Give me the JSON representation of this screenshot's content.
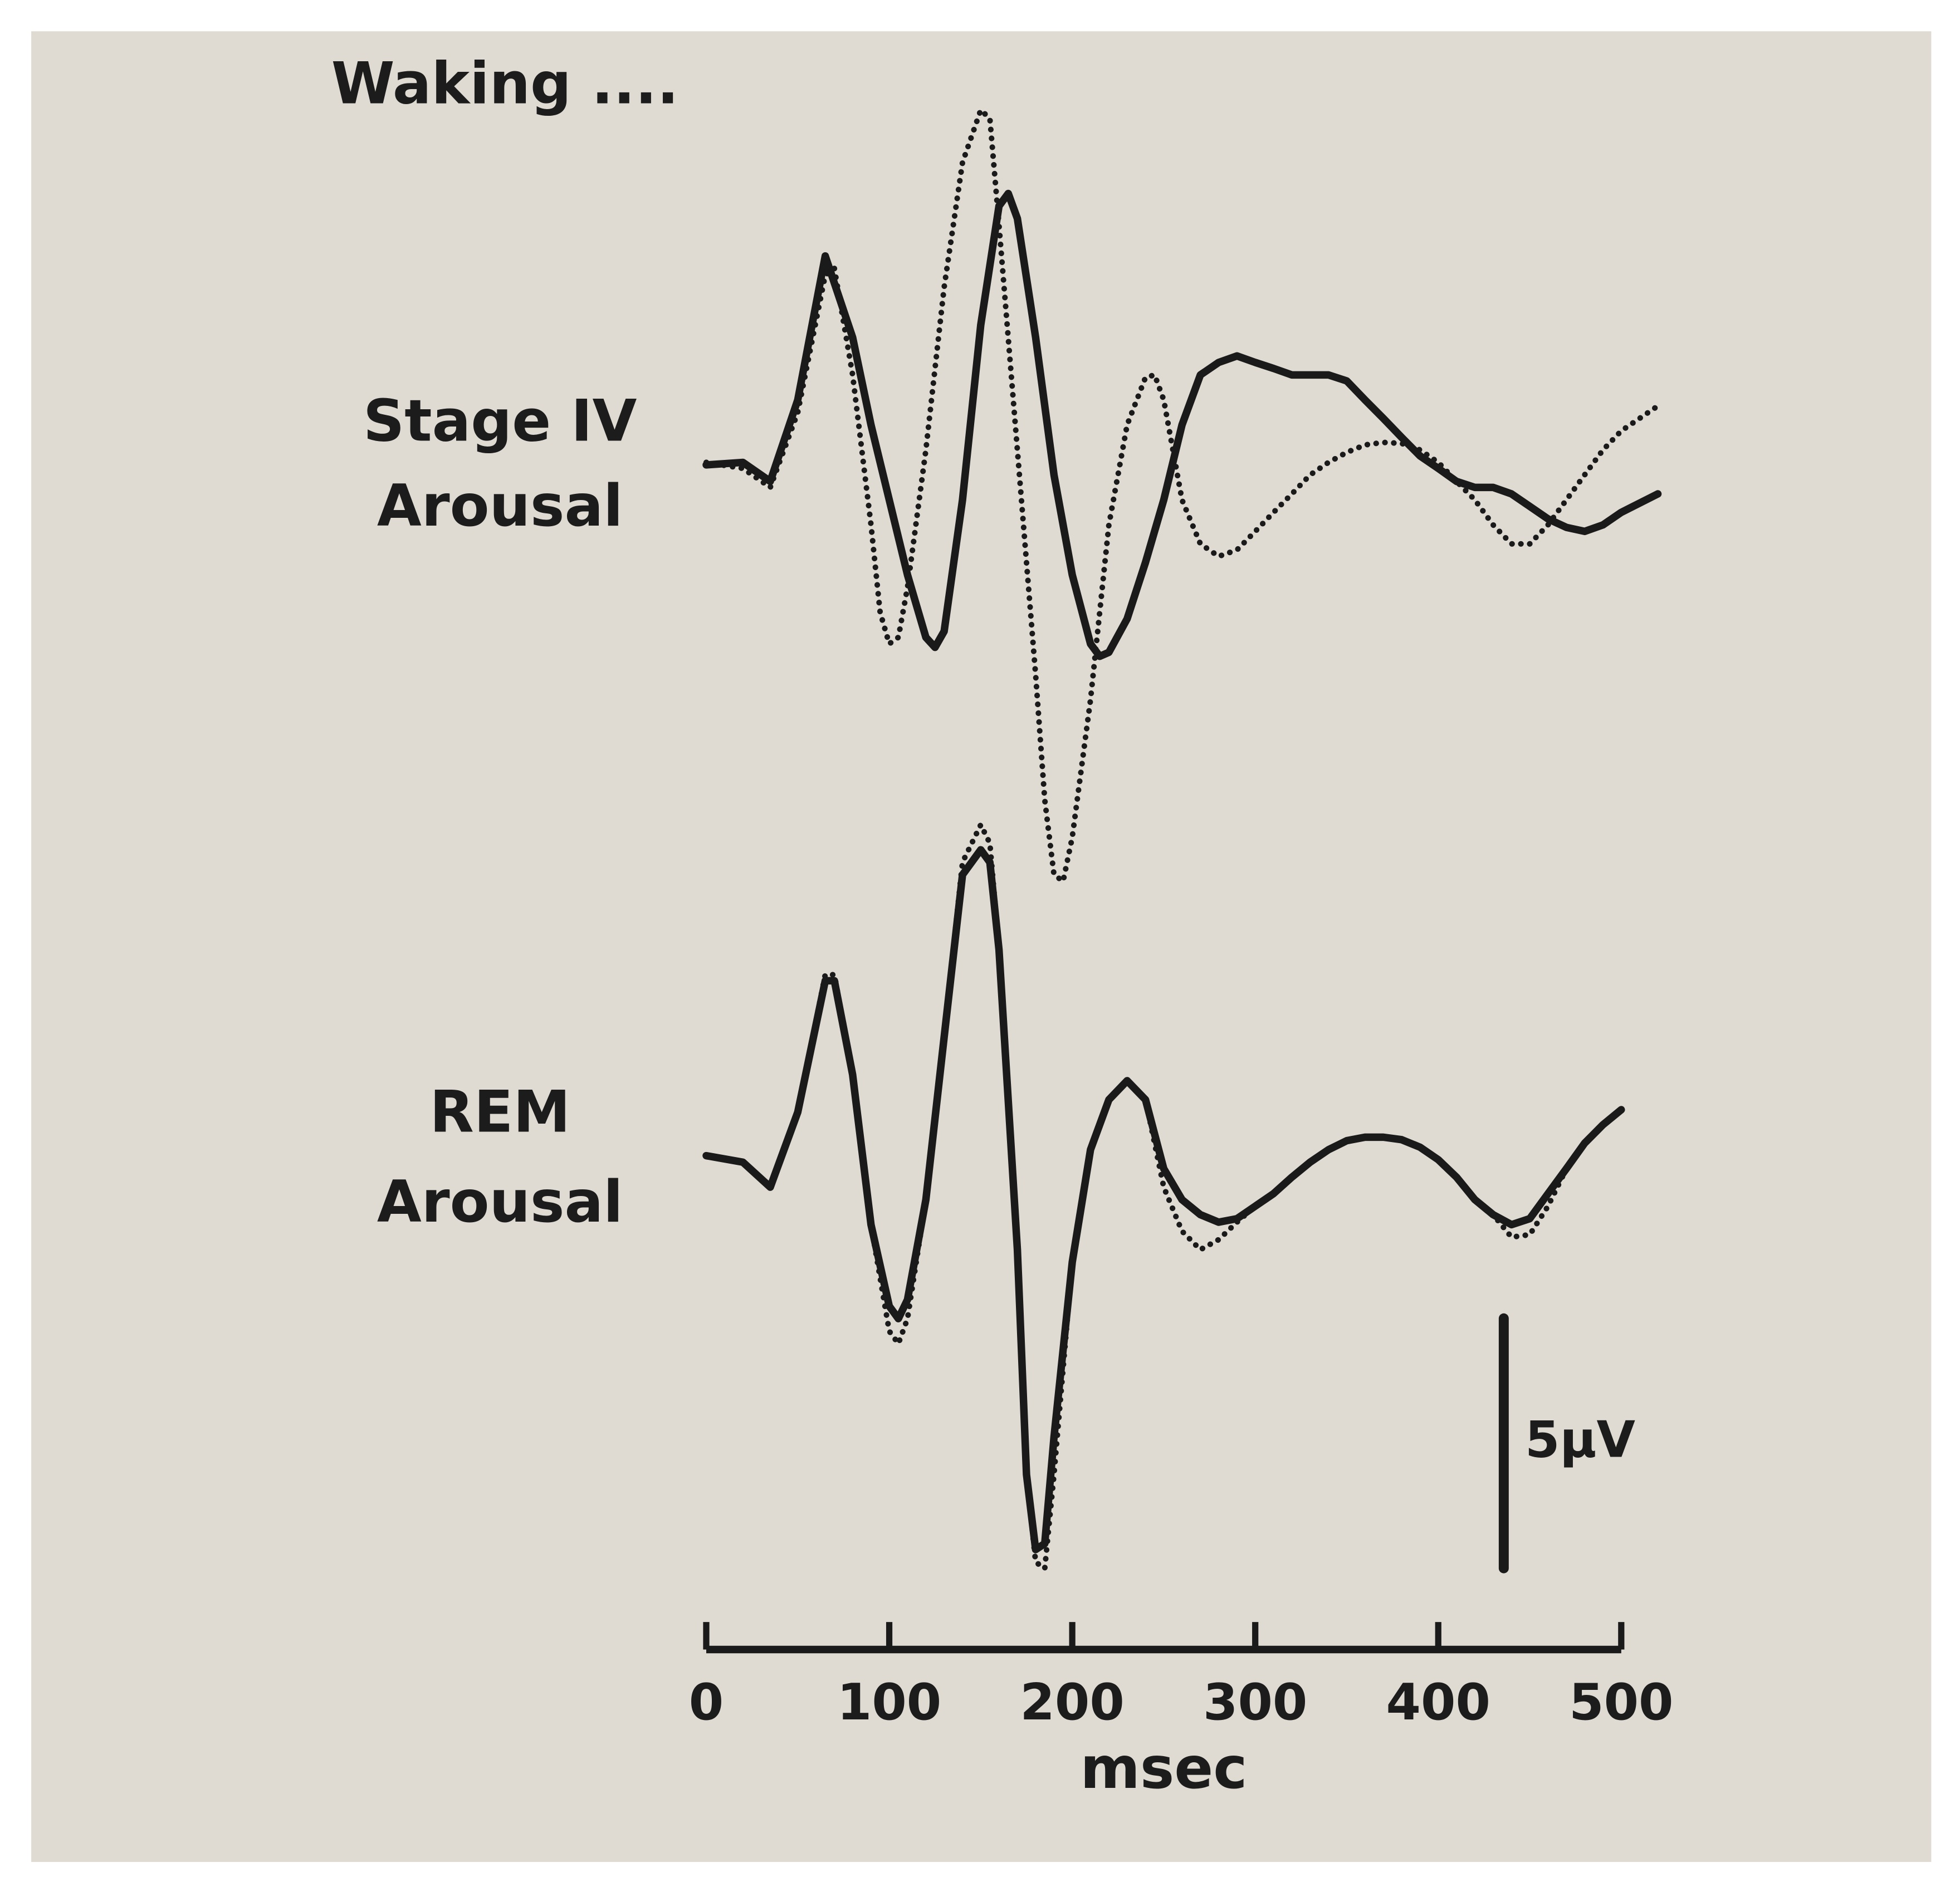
{
  "chart_data": [
    {
      "type": "line",
      "label": [
        "Stage IV",
        "Arousal"
      ],
      "series": [
        {
          "name": "Waking ....",
          "style": "dotted",
          "color": "#1a1a1a",
          "x": [
            0,
            20,
            35,
            50,
            65,
            70,
            80,
            90,
            95,
            100,
            105,
            110,
            120,
            130,
            140,
            150,
            155,
            160,
            170,
            180,
            185,
            190,
            195,
            200,
            210,
            220,
            230,
            240,
            245,
            250,
            260,
            270,
            280,
            290,
            300,
            310,
            320,
            330,
            340,
            350,
            360,
            370,
            380,
            390,
            400,
            410,
            420,
            430,
            440,
            450,
            460,
            470,
            480,
            490,
            500,
            520
          ],
          "values": [
            0.25,
            0.13,
            -0.25,
            1.25,
            4,
            4.13,
            2,
            -1,
            -2.75,
            -3.38,
            -3.25,
            -2.25,
            0.5,
            3.75,
            6.25,
            7.3,
            7.13,
            5,
            0.5,
            -4,
            -6.5,
            -8,
            -8.13,
            -7.25,
            -4.5,
            -1,
            1,
            1.95,
            2,
            1.5,
            -0.5,
            -1.38,
            -1.63,
            -1.5,
            -1.13,
            -0.75,
            -0.38,
            0,
            0.25,
            0.45,
            0.6,
            0.65,
            0.63,
            0.5,
            0.25,
            -0.13,
            -0.5,
            -1,
            -1.38,
            -1.38,
            -1,
            -0.5,
            0,
            0.5,
            0.88,
            1.38
          ]
        },
        {
          "style": "solid",
          "color": "#1a1a1a",
          "x": [
            0,
            20,
            35,
            50,
            65,
            80,
            90,
            100,
            110,
            120,
            125,
            130,
            140,
            150,
            160,
            165,
            170,
            180,
            190,
            200,
            210,
            215,
            220,
            230,
            240,
            250,
            260,
            270,
            280,
            290,
            300,
            310,
            320,
            330,
            340,
            350,
            360,
            370,
            380,
            390,
            400,
            410,
            420,
            430,
            440,
            450,
            460,
            470,
            480,
            490,
            500,
            520
          ],
          "values": [
            0.2,
            0.25,
            -0.13,
            1.5,
            4.38,
            2.75,
            1,
            -0.5,
            -2,
            -3.25,
            -3.45,
            -3.13,
            -0.5,
            3,
            5.38,
            5.63,
            5.13,
            2.75,
            0,
            -2,
            -3.38,
            -3.63,
            -3.55,
            -2.88,
            -1.75,
            -0.5,
            1,
            2,
            2.25,
            2.38,
            2.25,
            2.13,
            2,
            2,
            2,
            1.88,
            1.5,
            1.13,
            0.75,
            0.38,
            0.13,
            -0.13,
            -0.25,
            -0.25,
            -0.38,
            -0.63,
            -0.88,
            -1.05,
            -1.13,
            -1,
            -0.75,
            -0.38
          ]
        }
      ]
    },
    {
      "type": "line",
      "label": [
        "REM",
        "Arousal"
      ],
      "series": [
        {
          "style": "dotted",
          "color": "#1a1a1a",
          "x": [
            0,
            20,
            35,
            50,
            65,
            70,
            80,
            90,
            100,
            105,
            110,
            120,
            130,
            140,
            150,
            155,
            160,
            170,
            175,
            180,
            185,
            190,
            200,
            210,
            220,
            230,
            240,
            250,
            260,
            270,
            280,
            290,
            300,
            310,
            320,
            330,
            340,
            350,
            360,
            370,
            380,
            390,
            400,
            410,
            420,
            430,
            440,
            450,
            460,
            470,
            480,
            490,
            500
          ],
          "values": [
            0.13,
            0,
            -0.5,
            1,
            3.75,
            3.75,
            1.75,
            -1.25,
            -3.38,
            -3.63,
            -3.13,
            -0.75,
            2.5,
            6,
            6.75,
            6.38,
            4.25,
            -1.75,
            -6.25,
            -8,
            -8.13,
            -6.25,
            -2,
            0.25,
            1.25,
            1.63,
            1.25,
            -0.5,
            -1.38,
            -1.75,
            -1.55,
            -1.2,
            -0.88,
            -0.63,
            -0.3,
            0,
            0.25,
            0.43,
            0.5,
            0.5,
            0.45,
            0.3,
            0.05,
            -0.3,
            -0.75,
            -1.05,
            -1.5,
            -1.45,
            -0.88,
            -0.13,
            0.38,
            0.75,
            1.05
          ]
        },
        {
          "style": "solid",
          "color": "#1a1a1a",
          "x": [
            0,
            20,
            35,
            50,
            65,
            70,
            80,
            90,
            100,
            105,
            110,
            120,
            130,
            140,
            150,
            155,
            160,
            170,
            175,
            180,
            185,
            190,
            200,
            210,
            220,
            230,
            240,
            250,
            260,
            270,
            280,
            290,
            300,
            310,
            320,
            330,
            340,
            350,
            360,
            370,
            380,
            390,
            400,
            410,
            420,
            430,
            440,
            450,
            460,
            470,
            480,
            490,
            500
          ],
          "values": [
            0.13,
            0,
            -0.5,
            1,
            3.63,
            3.63,
            1.75,
            -1.25,
            -2.88,
            -3.13,
            -2.75,
            -0.75,
            2.5,
            5.75,
            6.25,
            6,
            4.25,
            -1.75,
            -6.25,
            -7.75,
            -7.63,
            -5.5,
            -2,
            0.25,
            1.25,
            1.63,
            1.25,
            -0.13,
            -0.75,
            -1.05,
            -1.2,
            -1.13,
            -0.88,
            -0.63,
            -0.3,
            0,
            0.25,
            0.43,
            0.5,
            0.5,
            0.45,
            0.3,
            0.05,
            -0.3,
            -0.75,
            -1.05,
            -1.25,
            -1.13,
            -0.63,
            -0.13,
            0.38,
            0.75,
            1.05
          ]
        }
      ]
    }
  ],
  "axis": {
    "xlim": [
      0,
      500
    ],
    "xticks": [
      0,
      100,
      200,
      300,
      400,
      500
    ],
    "xlabel": "msec",
    "scale_bar": {
      "value": 5,
      "label": "5µV"
    }
  }
}
